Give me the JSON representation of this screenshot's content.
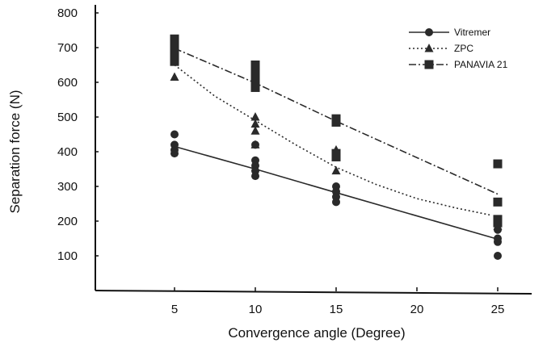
{
  "chart_data": {
    "type": "scatter",
    "title": "",
    "xlabel": "Convergence angle (Degree)",
    "ylabel": "Separation force (N)",
    "x_ticks": [
      5,
      10,
      15,
      20,
      25
    ],
    "y_ticks": [
      100,
      200,
      300,
      400,
      500,
      600,
      700,
      800
    ],
    "xlim": [
      0,
      28
    ],
    "ylim": [
      0,
      800
    ],
    "grid": false,
    "legend_position": "top-right",
    "series": [
      {
        "name": "Vitremer",
        "marker": "circle",
        "line_style": "solid",
        "color": "#2a2a2a",
        "points": [
          [
            5,
            450
          ],
          [
            5,
            420
          ],
          [
            5,
            405
          ],
          [
            5,
            395
          ],
          [
            10,
            375
          ],
          [
            10,
            360
          ],
          [
            10,
            345
          ],
          [
            10,
            330
          ],
          [
            10,
            420
          ],
          [
            15,
            300
          ],
          [
            15,
            285
          ],
          [
            15,
            270
          ],
          [
            15,
            255
          ],
          [
            25,
            175
          ],
          [
            25,
            150
          ],
          [
            25,
            140
          ],
          [
            25,
            100
          ]
        ],
        "fit": [
          [
            5,
            415
          ],
          [
            10,
            350
          ],
          [
            15,
            282
          ],
          [
            25,
            148
          ]
        ]
      },
      {
        "name": "ZPC",
        "marker": "triangle",
        "line_style": "dotted",
        "color": "#2a2a2a",
        "points": [
          [
            5,
            615
          ],
          [
            5,
            660
          ],
          [
            10,
            500
          ],
          [
            10,
            480
          ],
          [
            10,
            460
          ],
          [
            10,
            420
          ],
          [
            15,
            405
          ],
          [
            15,
            390
          ],
          [
            15,
            345
          ],
          [
            25,
            200
          ],
          [
            25,
            185
          ]
        ],
        "fit": [
          [
            5,
            650
          ],
          [
            7.5,
            560
          ],
          [
            10,
            490
          ],
          [
            12.5,
            420
          ],
          [
            15,
            355
          ],
          [
            17.5,
            305
          ],
          [
            20,
            265
          ],
          [
            22.5,
            237
          ],
          [
            24.5,
            218
          ]
        ]
      },
      {
        "name": "PANAVIA 21",
        "marker": "square",
        "line_style": "dashdot",
        "color": "#2a2a2a",
        "points": [
          [
            5,
            725
          ],
          [
            5,
            710
          ],
          [
            5,
            690
          ],
          [
            5,
            675
          ],
          [
            5,
            660
          ],
          [
            10,
            650
          ],
          [
            10,
            635
          ],
          [
            10,
            620
          ],
          [
            10,
            605
          ],
          [
            10,
            585
          ],
          [
            15,
            495
          ],
          [
            15,
            485
          ],
          [
            15,
            395
          ],
          [
            15,
            385
          ],
          [
            25,
            365
          ],
          [
            25,
            255
          ],
          [
            25,
            205
          ],
          [
            25,
            195
          ]
        ],
        "fit": [
          [
            5,
            698
          ],
          [
            10,
            598
          ],
          [
            15,
            488
          ],
          [
            25,
            278
          ]
        ]
      }
    ]
  }
}
